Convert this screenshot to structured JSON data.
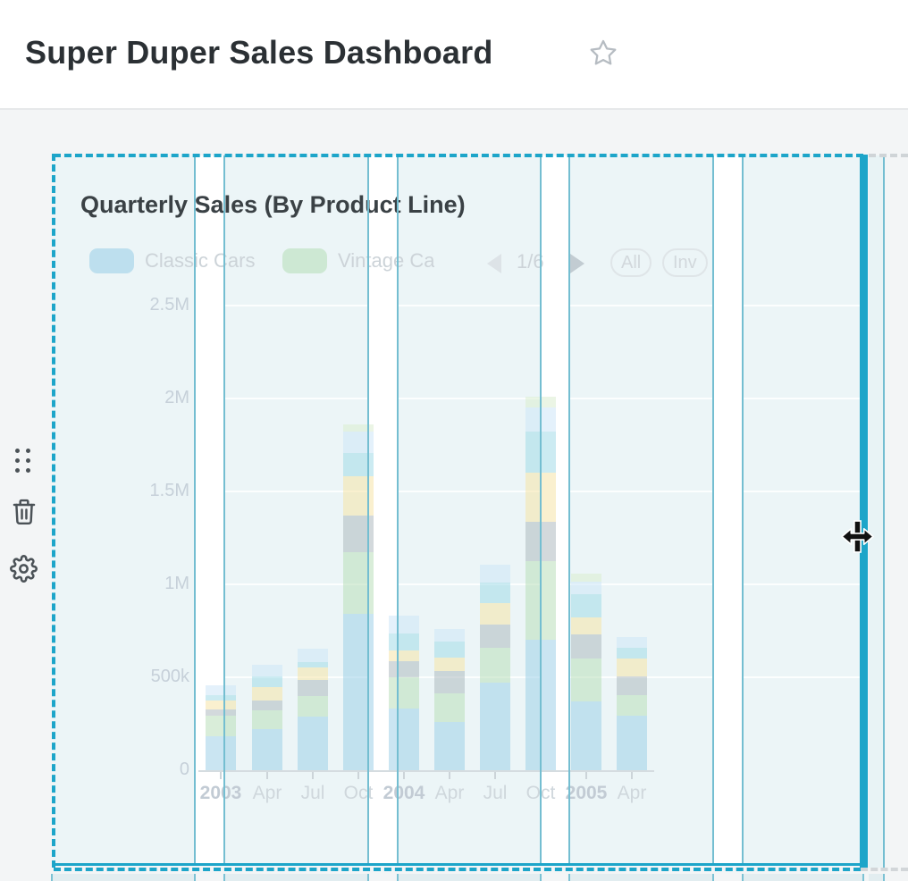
{
  "page": {
    "title": "Super Duper Sales Dashboard"
  },
  "header": {
    "favorite_icon": "star-outline"
  },
  "side_actions": {
    "drag_handle_icon": "drag-handle-dots",
    "delete_icon": "trash",
    "settings_icon": "gear"
  },
  "card": {
    "title": "Quarterly Sales (By Product Line)",
    "state": "selected-dragging",
    "legend": {
      "items": [
        {
          "label": "Classic Cars",
          "color": "#9fd0e8",
          "display": "Classic Cars"
        },
        {
          "label": "Vintage Cars",
          "color": "#b9dfba",
          "display": "Vintage Ca"
        }
      ],
      "pagination": {
        "current": "1/6",
        "prev_icon": "chevron-left",
        "next_icon": "chevron-right"
      },
      "buttons": [
        {
          "label": "All"
        },
        {
          "label": "Inv"
        }
      ]
    }
  },
  "chart_data": {
    "type": "bar",
    "stacked": true,
    "title": "Quarterly Sales (By Product Line)",
    "categories": [
      "2003",
      "Apr",
      "Jul",
      "Oct",
      "2004",
      "Apr",
      "Jul",
      "Oct",
      "2005",
      "Apr"
    ],
    "year_ticks": [
      "2003",
      "2004",
      "2005"
    ],
    "unit": "thousands (k)",
    "ylim": [
      0,
      2500
    ],
    "y_ticks": [
      {
        "value": 0,
        "label": "0"
      },
      {
        "value": 500,
        "label": "500k"
      },
      {
        "value": 1000,
        "label": "1M"
      },
      {
        "value": 1500,
        "label": "1.5M"
      },
      {
        "value": 2000,
        "label": "2M"
      },
      {
        "value": 2500,
        "label": "2.5M"
      }
    ],
    "legend_position": "top",
    "grid": true,
    "series": [
      {
        "name": "Classic Cars",
        "color": "#9fd0e8",
        "values": [
          185,
          220,
          290,
          840,
          330,
          260,
          470,
          700,
          370,
          295
        ]
      },
      {
        "name": "Vintage Cars",
        "color": "#b9dfba",
        "values": [
          110,
          100,
          110,
          335,
          170,
          155,
          190,
          425,
          230,
          110
        ]
      },
      {
        "name": "unlabeled-3",
        "color": "#aebabf",
        "values": [
          30,
          55,
          85,
          195,
          85,
          120,
          125,
          210,
          130,
          100
        ]
      },
      {
        "name": "unlabeled-4",
        "color": "#f5e3a8",
        "values": [
          50,
          70,
          70,
          210,
          60,
          70,
          115,
          265,
          90,
          95
        ]
      },
      {
        "name": "unlabeled-5",
        "color": "#a3dbe8",
        "values": [
          30,
          60,
          25,
          125,
          90,
          85,
          110,
          220,
          125,
          60
        ]
      },
      {
        "name": "unlabeled-6",
        "color": "#cde6f7",
        "values": [
          50,
          60,
          75,
          115,
          95,
          70,
          95,
          130,
          70,
          55
        ]
      },
      {
        "name": "unlabeled-7",
        "color": "#dbeccf",
        "values": [
          0,
          0,
          0,
          40,
          0,
          0,
          0,
          60,
          45,
          0
        ]
      }
    ]
  },
  "colors": {
    "accent": "#1da5c9",
    "grid_line": "#74bed1",
    "card_bg": "#ecf5f7",
    "canvas_bg": "#f3f5f6",
    "divider": "#e6e8ea"
  },
  "cursor": {
    "icon": "move-horizontal-cursor"
  }
}
